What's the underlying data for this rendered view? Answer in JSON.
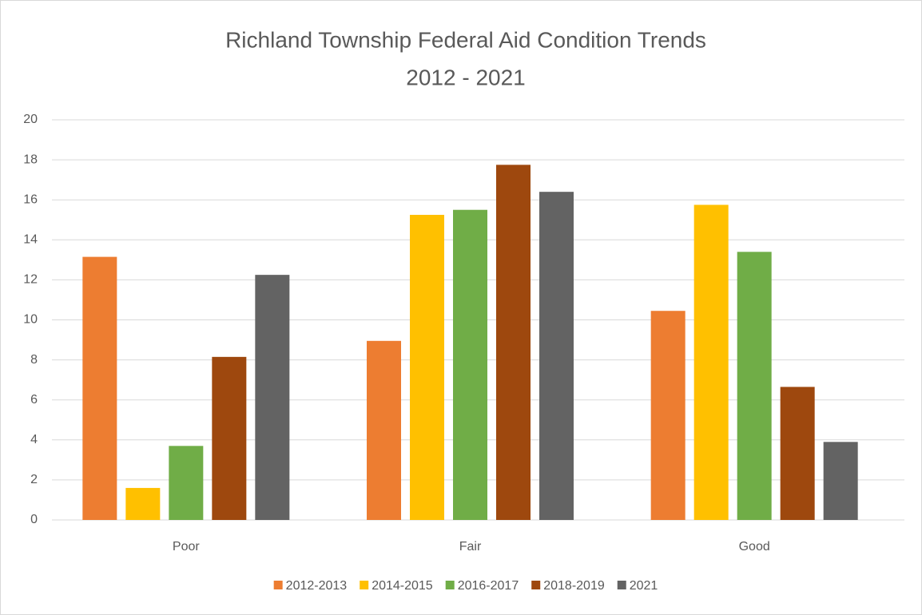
{
  "chart_data": {
    "type": "bar",
    "title": "Richland Township Federal Aid Condition Trends",
    "subtitle": "2012 - 2021",
    "categories": [
      "Poor",
      "Fair",
      "Good"
    ],
    "series": [
      {
        "name": "2012-2013",
        "color": "#ED7D31",
        "values": [
          13.15,
          8.95,
          10.45
        ]
      },
      {
        "name": "2014-2015",
        "color": "#FFC000",
        "values": [
          1.6,
          15.25,
          15.75
        ]
      },
      {
        "name": "2016-2017",
        "color": "#70AD47",
        "values": [
          3.7,
          15.5,
          13.4
        ]
      },
      {
        "name": "2018-2019",
        "color": "#9E480E",
        "values": [
          8.15,
          17.75,
          6.65
        ]
      },
      {
        "name": "2021",
        "color": "#636363",
        "values": [
          12.25,
          16.4,
          3.9
        ]
      }
    ],
    "ylim": [
      0,
      20
    ],
    "yticks": [
      0,
      2,
      4,
      6,
      8,
      10,
      12,
      14,
      16,
      18,
      20
    ],
    "grid": true,
    "legend": "bottom"
  }
}
